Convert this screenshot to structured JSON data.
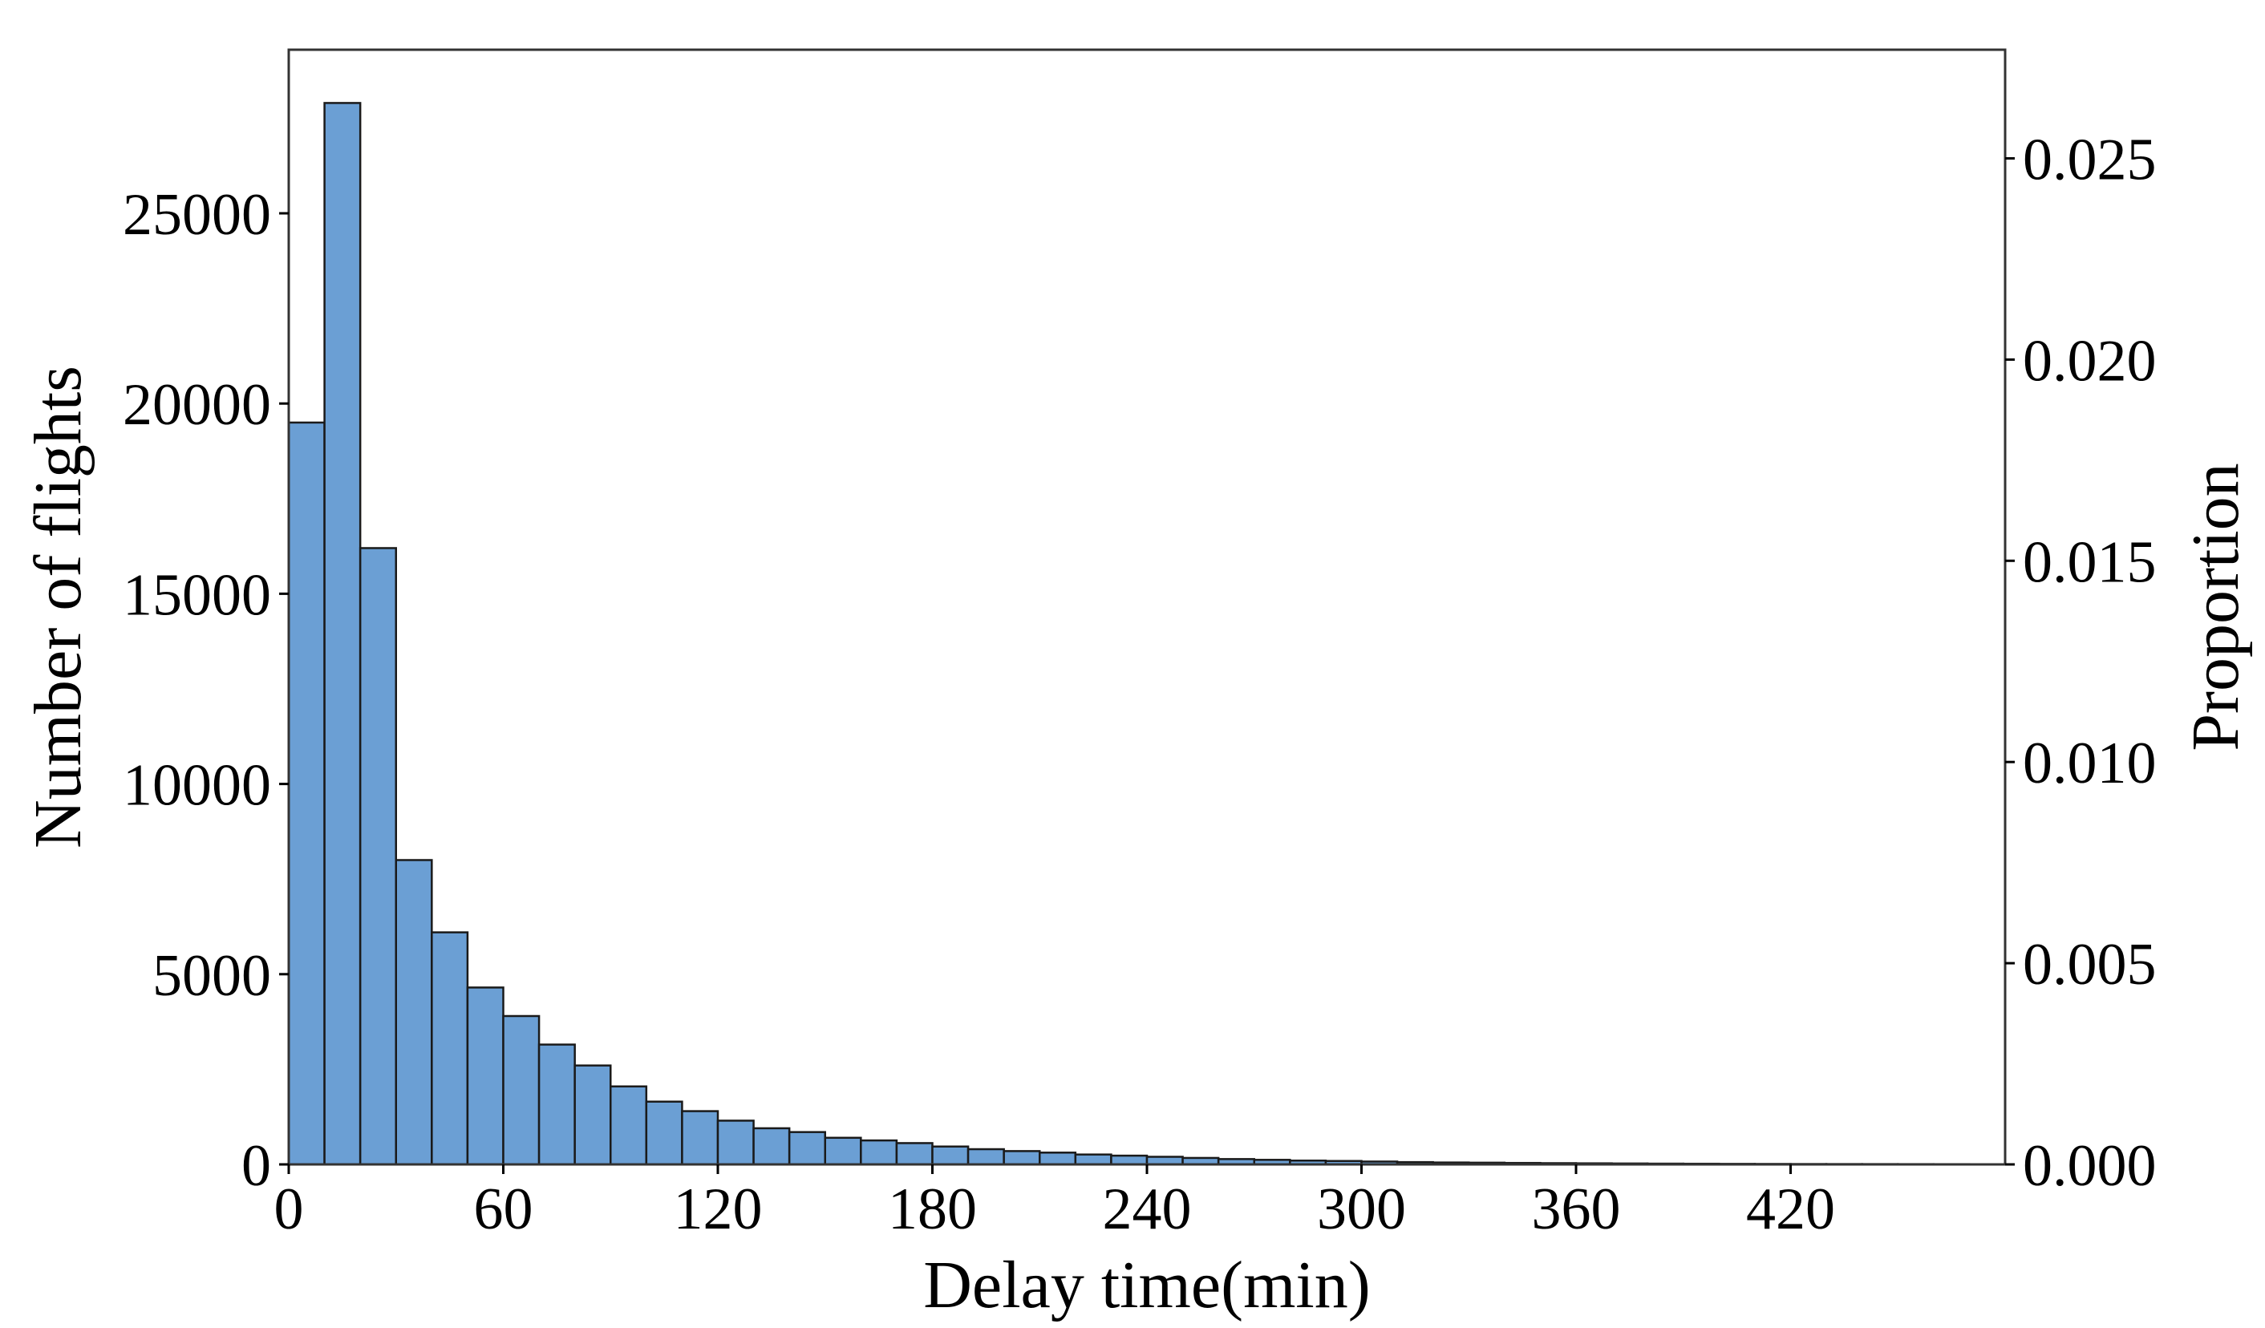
{
  "chart_data": {
    "type": "bar",
    "subtype": "histogram",
    "title": "",
    "xlabel": "Delay time(min)",
    "ylabel": "Number of flights",
    "y2label": "Proportion",
    "xlim": [
      0,
      480
    ],
    "ylim": [
      0,
      29300
    ],
    "y2lim": [
      0,
      0.0277
    ],
    "bin_width": 10,
    "x_ticks": [
      "0",
      "60",
      "120",
      "180",
      "240",
      "300",
      "360",
      "420"
    ],
    "x_tick_values": [
      0,
      60,
      120,
      180,
      240,
      300,
      360,
      420
    ],
    "y_ticks": [
      "0",
      "5000",
      "10000",
      "15000",
      "20000",
      "25000"
    ],
    "y_tick_values": [
      0,
      5000,
      10000,
      15000,
      20000,
      25000
    ],
    "y2_ticks": [
      "0.000",
      "0.005",
      "0.010",
      "0.015",
      "0.020",
      "0.025"
    ],
    "y2_tick_values": [
      0,
      0.005,
      0.01,
      0.015,
      0.02,
      0.025
    ],
    "bin_starts": [
      0,
      10,
      20,
      30,
      40,
      50,
      60,
      70,
      80,
      90,
      100,
      110,
      120,
      130,
      140,
      150,
      160,
      170,
      180,
      190,
      200,
      210,
      220,
      230,
      240,
      250,
      260,
      270,
      280,
      290,
      300,
      310,
      320,
      330,
      340,
      350,
      360,
      370,
      380,
      390,
      400,
      410,
      420,
      430,
      440,
      450,
      460,
      470
    ],
    "values": [
      19500,
      27900,
      16200,
      8000,
      6100,
      4650,
      3900,
      3150,
      2600,
      2050,
      1650,
      1400,
      1150,
      950,
      850,
      700,
      630,
      560,
      470,
      400,
      350,
      310,
      260,
      230,
      200,
      170,
      140,
      120,
      100,
      90,
      75,
      60,
      50,
      45,
      38,
      32,
      28,
      24,
      20,
      17,
      14,
      12,
      10,
      9,
      8,
      7,
      6,
      5
    ],
    "bar_color": "#6b9fd4",
    "edge_color": "#1a1a1a",
    "grid": false,
    "legend": "none"
  }
}
